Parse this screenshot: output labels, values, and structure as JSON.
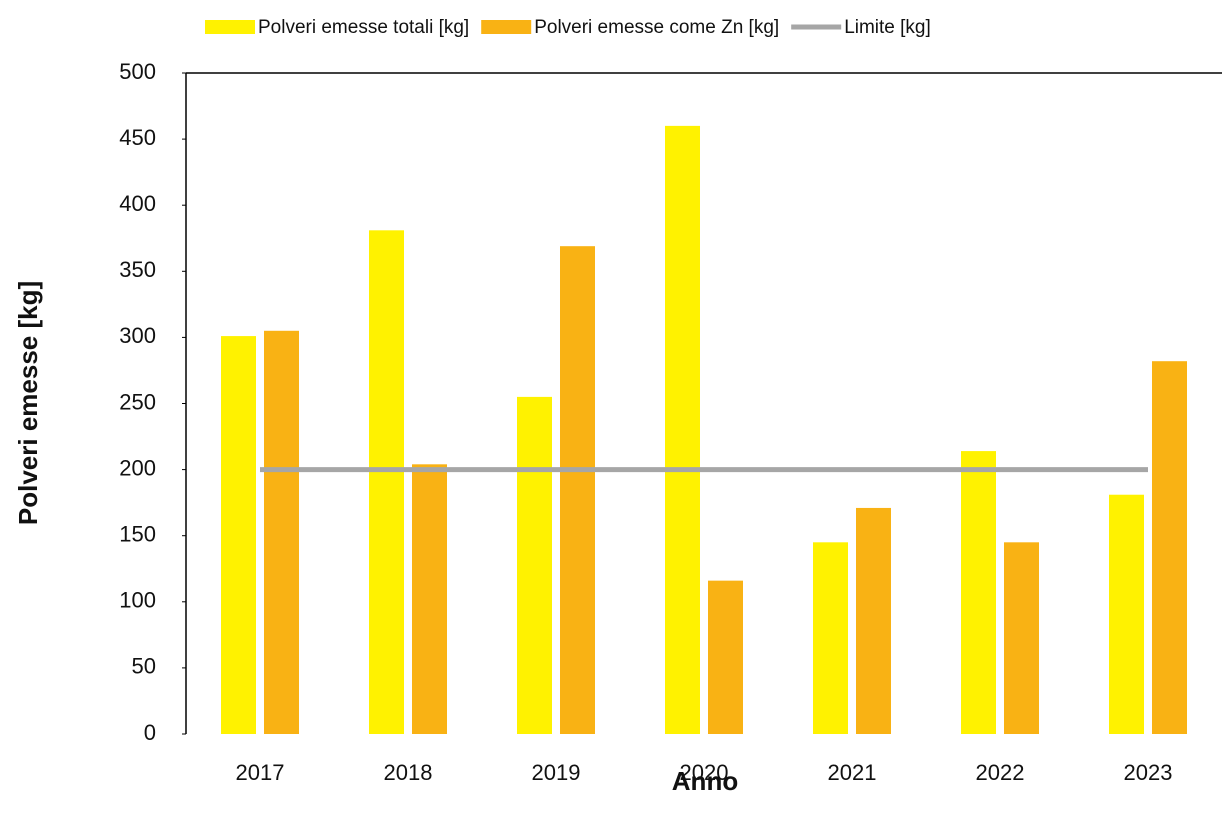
{
  "chart_data": {
    "type": "bar",
    "categories": [
      "2017",
      "2018",
      "2019",
      "2020",
      "2021",
      "2022",
      "2023"
    ],
    "series": [
      {
        "name": "Polveri emesse totali [kg]",
        "color": "#fff200",
        "values": [
          301,
          381,
          255,
          460,
          145,
          214,
          181
        ]
      },
      {
        "name": "Polveri emesse come Zn [kg]",
        "color": "#f9b214",
        "values": [
          305,
          204,
          369,
          116,
          171,
          145,
          282
        ]
      },
      {
        "name": "Limite [kg]",
        "color": "#a6a6a6",
        "type": "line",
        "values": [
          200,
          200,
          200,
          200,
          200,
          200,
          200
        ]
      }
    ],
    "xlabel": "Anno",
    "ylabel": "Polveri emesse [kg]",
    "ylim": [
      0,
      500
    ],
    "yticks": [
      0,
      50,
      100,
      150,
      200,
      250,
      300,
      350,
      400,
      450,
      500
    ],
    "legend": "top"
  }
}
